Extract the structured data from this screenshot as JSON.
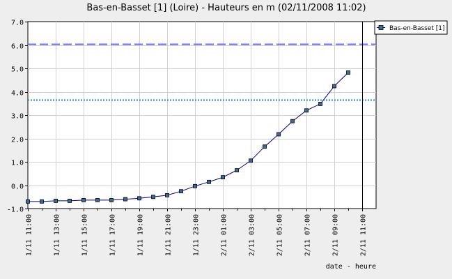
{
  "chart_data": {
    "type": "line",
    "title": "Bas-en-Basset [1] (Loire) - Hauteurs en m (02/11/2008 11:02)",
    "xlabel": "date - heure",
    "ylabel": "",
    "ylim": [
      -1.0,
      7.0
    ],
    "yticks": [
      "7.0",
      "6.0",
      "5.0",
      "4.0",
      "3.0",
      "2.0",
      "1.0",
      "0.0",
      "-1.0"
    ],
    "xticks": [
      "1/11 11:00",
      "1/11 13:00",
      "1/11 15:00",
      "1/11 17:00",
      "1/11 19:00",
      "1/11 21:00",
      "1/11 23:00",
      "2/11 01:00",
      "2/11 03:00",
      "2/11 05:00",
      "2/11 07:00",
      "2/11 09:00",
      "2/11 11:00"
    ],
    "grid": true,
    "legend_position": "top-right",
    "series": [
      {
        "name": "Bas-en-Basset [1]",
        "color": "#000080",
        "marker_fill": "#3d6b99",
        "x_hours": [
          0,
          1,
          2,
          3,
          4,
          5,
          6,
          7,
          8,
          9,
          10,
          11,
          12,
          13,
          14,
          15,
          16,
          17,
          18,
          19,
          20,
          21,
          22,
          23
        ],
        "values": [
          -0.7,
          -0.7,
          -0.67,
          -0.67,
          -0.64,
          -0.64,
          -0.64,
          -0.6,
          -0.56,
          -0.5,
          -0.43,
          -0.26,
          -0.04,
          0.14,
          0.34,
          0.64,
          1.05,
          1.65,
          2.18,
          2.74,
          3.2,
          3.48,
          4.24,
          4.82
        ]
      }
    ],
    "reference_lines": [
      {
        "value": 6.05,
        "style": "dashed",
        "color": "#6b6bff"
      },
      {
        "value": 3.65,
        "style": "dotted",
        "color": "#1f8fbf"
      }
    ],
    "current_time_hour": 24
  }
}
